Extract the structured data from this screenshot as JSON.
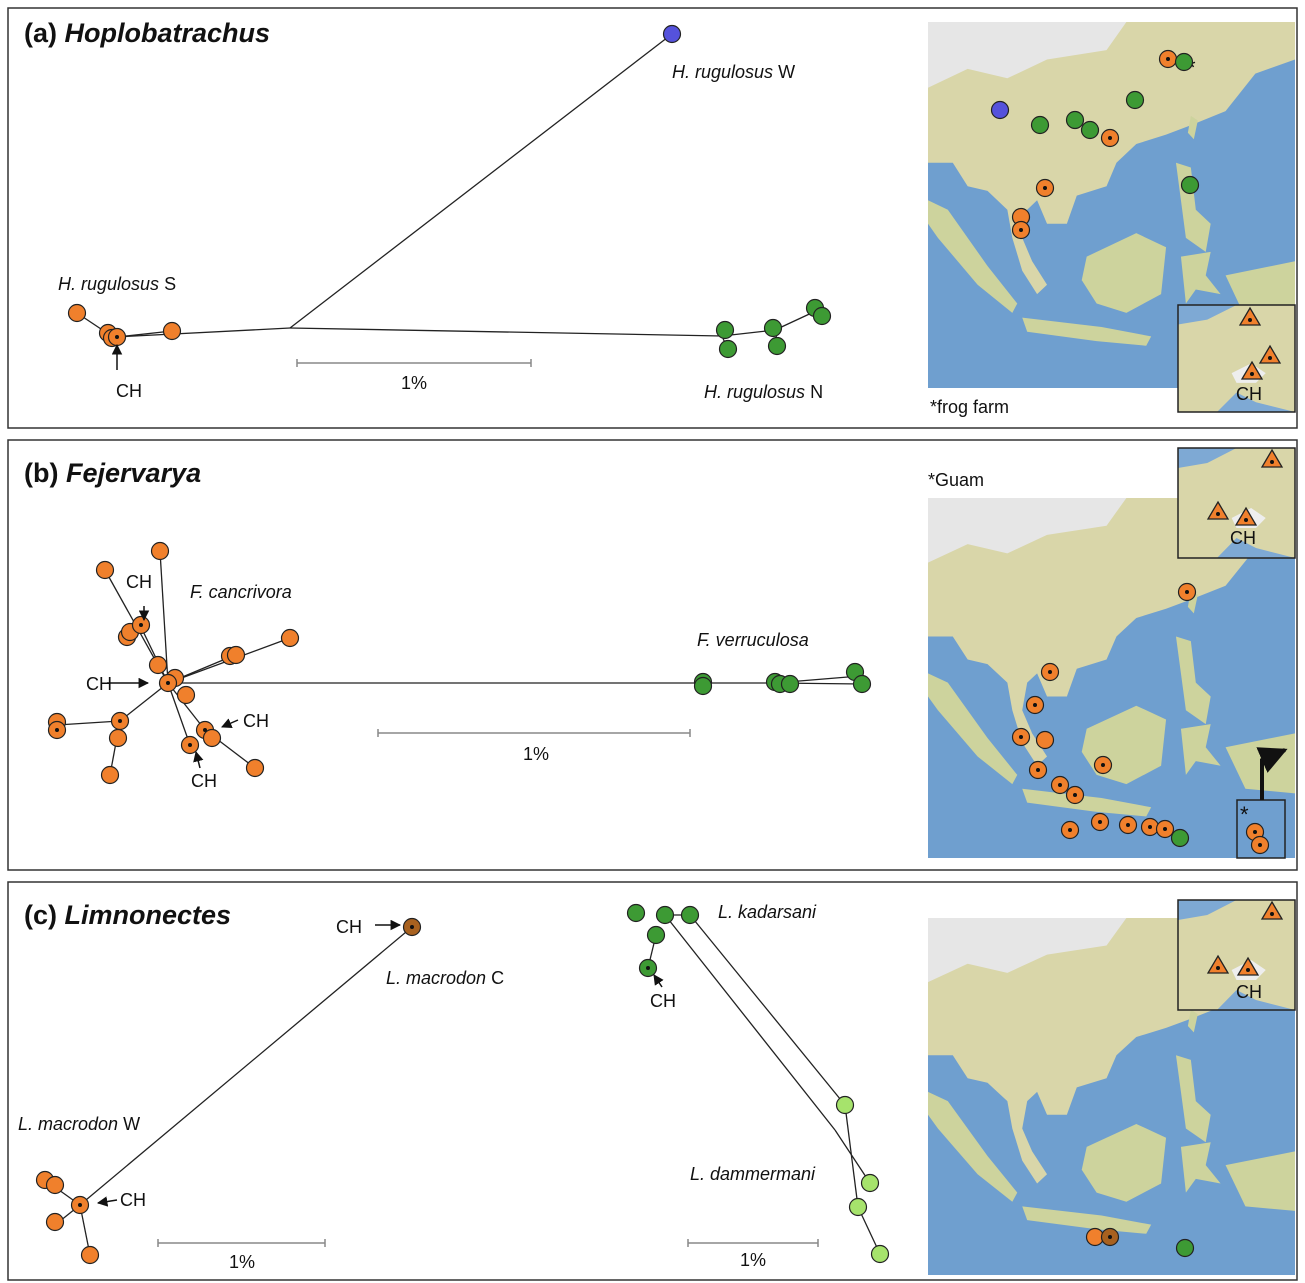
{
  "panels": [
    {
      "letter": "(a)",
      "genus": "Hoplobatrachus",
      "labels": [
        {
          "name": "H. rugulosus",
          "suffix": "S"
        },
        {
          "name": "H. rugulosus",
          "suffix": "W"
        },
        {
          "name": "H. rugulosus",
          "suffix": "N"
        }
      ],
      "ch": [
        "CH"
      ],
      "scales": [
        "1%"
      ],
      "map_note": "*frog farm",
      "map_asterisk": "*",
      "inset_ch": "CH"
    },
    {
      "letter": "(b)",
      "genus": "Fejervarya",
      "labels": [
        {
          "name": "F. cancrivora"
        },
        {
          "name": "F. verruculosa"
        }
      ],
      "ch": [
        "CH",
        "CH",
        "CH",
        "CH"
      ],
      "scales": [
        "1%"
      ],
      "map_note": "*Guam",
      "map_asterisk": "*",
      "inset_ch": "CH"
    },
    {
      "letter": "(c)",
      "genus": "Limnonectes",
      "labels": [
        {
          "name": "L. macrodon",
          "suffix": "C"
        },
        {
          "name": "L. macrodon",
          "suffix": "W"
        },
        {
          "name": "L. kadarsani"
        },
        {
          "name": "L. dammermani"
        }
      ],
      "ch": [
        "CH",
        "CH",
        "CH"
      ],
      "scales": [
        "1%",
        "1%"
      ],
      "inset_ch": "CH"
    }
  ]
}
